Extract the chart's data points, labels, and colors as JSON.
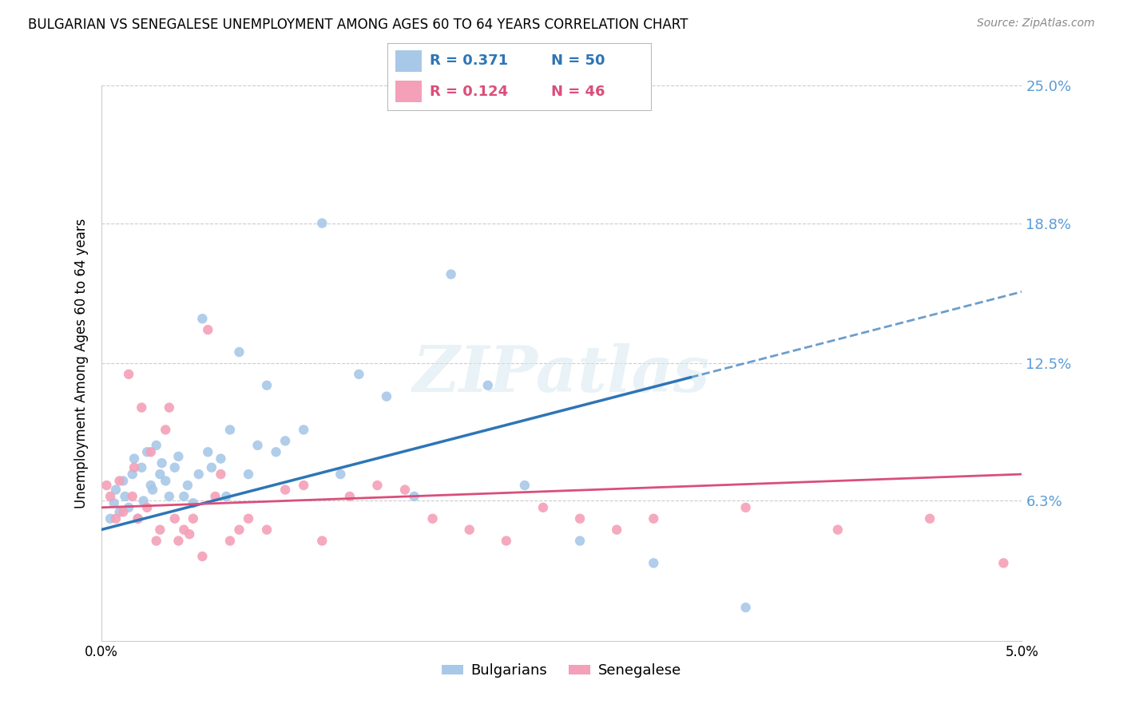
{
  "title": "BULGARIAN VS SENEGALESE UNEMPLOYMENT AMONG AGES 60 TO 64 YEARS CORRELATION CHART",
  "source": "Source: ZipAtlas.com",
  "ylabel": "Unemployment Among Ages 60 to 64 years",
  "xlim": [
    0.0,
    5.0
  ],
  "ylim": [
    0.0,
    25.0
  ],
  "ytick_positions": [
    6.3,
    12.5,
    18.8,
    25.0
  ],
  "ytick_labels": [
    "6.3%",
    "12.5%",
    "18.8%",
    "25.0%"
  ],
  "right_ytick_color": "#5b9bd5",
  "bulgarian_color": "#a8c8e8",
  "senegalese_color": "#f4a0b8",
  "trend_bulgarian_color": "#2e75b6",
  "trend_senegalese_color": "#d94f7a",
  "title_fontsize": 12,
  "source_fontsize": 10,
  "ylabel_fontsize": 12,
  "tick_fontsize": 12,
  "marker_size": 80,
  "bulgarians_x": [
    0.05,
    0.07,
    0.08,
    0.1,
    0.12,
    0.13,
    0.15,
    0.17,
    0.18,
    0.2,
    0.22,
    0.23,
    0.25,
    0.27,
    0.28,
    0.3,
    0.32,
    0.33,
    0.35,
    0.37,
    0.4,
    0.42,
    0.45,
    0.47,
    0.5,
    0.53,
    0.55,
    0.58,
    0.6,
    0.65,
    0.68,
    0.7,
    0.75,
    0.8,
    0.85,
    0.9,
    0.95,
    1.0,
    1.1,
    1.2,
    1.3,
    1.4,
    1.55,
    1.7,
    1.9,
    2.1,
    2.3,
    2.6,
    3.0,
    3.5
  ],
  "bulgarians_y": [
    5.5,
    6.2,
    6.8,
    5.8,
    7.2,
    6.5,
    6.0,
    7.5,
    8.2,
    5.5,
    7.8,
    6.3,
    8.5,
    7.0,
    6.8,
    8.8,
    7.5,
    8.0,
    7.2,
    6.5,
    7.8,
    8.3,
    6.5,
    7.0,
    6.2,
    7.5,
    14.5,
    8.5,
    7.8,
    8.2,
    6.5,
    9.5,
    13.0,
    7.5,
    8.8,
    11.5,
    8.5,
    9.0,
    9.5,
    18.8,
    7.5,
    12.0,
    11.0,
    6.5,
    16.5,
    11.5,
    7.0,
    4.5,
    3.5,
    1.5
  ],
  "senegalese_x": [
    0.03,
    0.05,
    0.08,
    0.1,
    0.12,
    0.15,
    0.17,
    0.18,
    0.2,
    0.22,
    0.25,
    0.27,
    0.3,
    0.32,
    0.35,
    0.37,
    0.4,
    0.42,
    0.45,
    0.48,
    0.5,
    0.55,
    0.58,
    0.62,
    0.65,
    0.7,
    0.75,
    0.8,
    0.9,
    1.0,
    1.1,
    1.2,
    1.35,
    1.5,
    1.65,
    1.8,
    2.0,
    2.2,
    2.4,
    2.6,
    2.8,
    3.0,
    3.5,
    4.0,
    4.5,
    4.9
  ],
  "senegalese_y": [
    7.0,
    6.5,
    5.5,
    7.2,
    5.8,
    12.0,
    6.5,
    7.8,
    5.5,
    10.5,
    6.0,
    8.5,
    4.5,
    5.0,
    9.5,
    10.5,
    5.5,
    4.5,
    5.0,
    4.8,
    5.5,
    3.8,
    14.0,
    6.5,
    7.5,
    4.5,
    5.0,
    5.5,
    5.0,
    6.8,
    7.0,
    4.5,
    6.5,
    7.0,
    6.8,
    5.5,
    5.0,
    4.5,
    6.0,
    5.5,
    5.0,
    5.5,
    6.0,
    5.0,
    5.5,
    3.5
  ],
  "trend_b_x0": 0.0,
  "trend_b_y0": 5.0,
  "trend_b_x1": 3.5,
  "trend_b_y1": 12.5,
  "trend_s_x0": 0.0,
  "trend_s_y0": 6.0,
  "trend_s_x1": 5.0,
  "trend_s_y1": 7.5,
  "dash_x0": 3.2,
  "dash_x1": 5.0
}
